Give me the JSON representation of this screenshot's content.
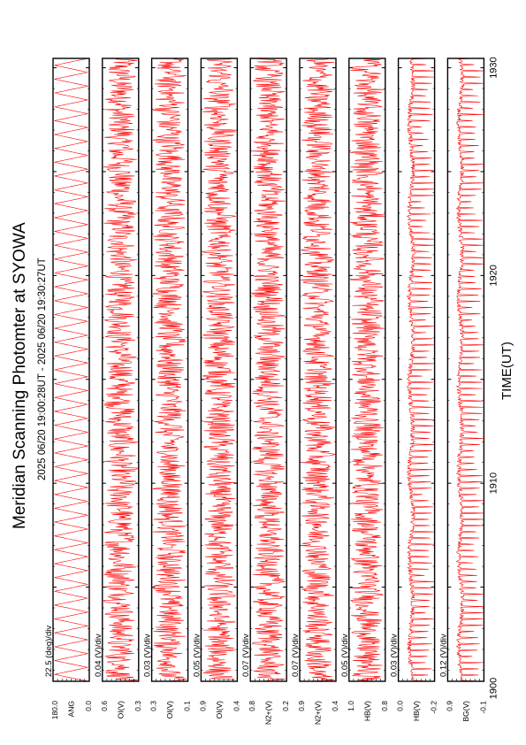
{
  "title": "Meridian Scanning Photomter at SYOWA",
  "subtitle": "2025 06/20 19:00:28UT - 2025 06/20 19:30:27UT",
  "xlabel": "TIME(UT)",
  "colors": {
    "trace": "#ff0000",
    "axes": "#000000",
    "background": "#ffffff"
  },
  "chart_data": {
    "type": "line",
    "title": "Meridian Scanning Photomter at SYOWA",
    "subtitle": "2025 06/20 19:00:28UT - 2025 06/20 19:30:27UT",
    "xlabel": "TIME(UT)",
    "x_ticks": [
      "1900",
      "1910",
      "1920",
      "1930"
    ],
    "xlim": [
      "19:00:28",
      "19:30:27"
    ],
    "grid": false,
    "series": [
      {
        "label": "ANG",
        "scale": "22.5 (deg)/div",
        "ytop": "180.0",
        "ybottom": "0.0",
        "approx_range": [
          0.0,
          180.0
        ],
        "shape": "sawtooth"
      },
      {
        "label": "OI(V)",
        "scale": "0.04 (V)/div",
        "ytop": "0.6",
        "ybottom": "0.3",
        "approx_range": [
          0.3,
          0.6
        ],
        "shape": "noisy"
      },
      {
        "label": "OI(V)",
        "scale": "0.03 (V)/div",
        "ytop": "0.3",
        "ybottom": "0.1",
        "approx_range": [
          0.1,
          0.3
        ],
        "shape": "noisy"
      },
      {
        "label": "OI(V)",
        "scale": "0.05 (V)/div",
        "ytop": "0.9",
        "ybottom": "0.4",
        "approx_range": [
          0.4,
          0.9
        ],
        "shape": "noisy"
      },
      {
        "label": "N2+(V)",
        "scale": "0.07 (V)/div",
        "ytop": "0.8",
        "ybottom": "0.2",
        "approx_range": [
          0.2,
          0.8
        ],
        "shape": "noisy"
      },
      {
        "label": "N2+(V)",
        "scale": "0.07 (V)/div",
        "ytop": "0.9",
        "ybottom": "0.4",
        "approx_range": [
          0.4,
          0.9
        ],
        "shape": "noisy"
      },
      {
        "label": "HB(V)",
        "scale": "0.05 (V)/div",
        "ytop": "1.0",
        "ybottom": "0.8",
        "approx_range": [
          0.8,
          1.0
        ],
        "shape": "noisy"
      },
      {
        "label": "HB(V)",
        "scale": "0.03 (V)/div",
        "ytop": "0.0",
        "ybottom": "-0.2",
        "approx_range": [
          -0.2,
          0.0
        ],
        "shape": "spiky"
      },
      {
        "label": "BG(V)",
        "scale": "0.12 (V)/div",
        "ytop": "0.9",
        "ybottom": "-0.1",
        "approx_range": [
          -0.1,
          0.9
        ],
        "shape": "spiky"
      }
    ]
  }
}
